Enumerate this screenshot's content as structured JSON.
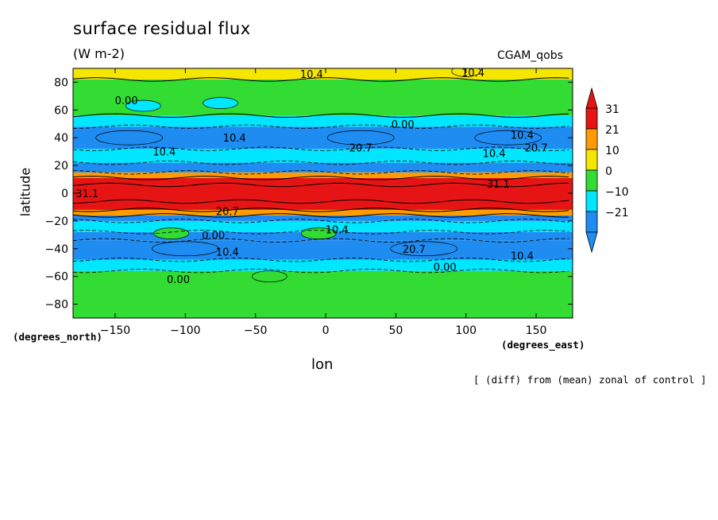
{
  "title": "surface residual flux",
  "units": "(W m-2)",
  "model": "CGAM_qobs",
  "note": "[ (diff) from (mean) zonal of control ]",
  "colors": {
    "band_neg21": "#1e8cf0",
    "band_neg10": "#00e6ff",
    "band_0": "#32dc32",
    "band_10": "#f5e600",
    "band_21": "#ff9b00",
    "band_31": "#e61414"
  },
  "chart_data": {
    "type": "heatmap",
    "title": "surface residual flux",
    "xlabel": "lon",
    "ylabel": "latitude",
    "x_units": "(degrees_east)",
    "y_units": "(degrees_north)",
    "xlim": [
      -180,
      176
    ],
    "ylim": [
      -90,
      90
    ],
    "xticks": [
      -150,
      -100,
      -50,
      0,
      50,
      100,
      150
    ],
    "yticks": [
      -80,
      -60,
      -40,
      -20,
      0,
      20,
      40,
      60,
      80
    ],
    "colorbar": {
      "levels": [
        -21,
        -10,
        0,
        10,
        21,
        31
      ],
      "labels": [
        "31",
        "21",
        "10",
        "0",
        "−10",
        "−21"
      ],
      "extends": "both"
    },
    "zonal_bands": [
      {
        "lat": [
          -90,
          -56
        ],
        "value": 5
      },
      {
        "lat": [
          -56,
          -48
        ],
        "value": -5
      },
      {
        "lat": [
          -48,
          -34
        ],
        "value": -15
      },
      {
        "lat": [
          -34,
          -28
        ],
        "value": -12
      },
      {
        "lat": [
          -28,
          -20
        ],
        "value": -8
      },
      {
        "lat": [
          -20,
          -16
        ],
        "value": -14
      },
      {
        "lat": [
          -16,
          -12
        ],
        "value": 15
      },
      {
        "lat": [
          -12,
          -6
        ],
        "value": 25
      },
      {
        "lat": [
          -6,
          6
        ],
        "value": 35
      },
      {
        "lat": [
          6,
          11
        ],
        "value": 25
      },
      {
        "lat": [
          11,
          15
        ],
        "value": 14
      },
      {
        "lat": [
          15,
          22
        ],
        "value": -14
      },
      {
        "lat": [
          22,
          32
        ],
        "value": -8
      },
      {
        "lat": [
          32,
          48
        ],
        "value": -14
      },
      {
        "lat": [
          48,
          56
        ],
        "value": -5
      },
      {
        "lat": [
          56,
          82
        ],
        "value": 4
      },
      {
        "lat": [
          82,
          90
        ],
        "value": 12
      }
    ],
    "features": [
      {
        "lon": -130,
        "lat": 63,
        "value": -5
      },
      {
        "lon": -75,
        "lat": 65,
        "value": -5
      },
      {
        "lon": -110,
        "lat": -29,
        "value": 3
      },
      {
        "lon": -5,
        "lat": -29,
        "value": 3
      },
      {
        "lon": -40,
        "lat": -60,
        "value": 5
      },
      {
        "lon": -140,
        "lat": 40,
        "value": -15
      },
      {
        "lon": 25,
        "lat": 40,
        "value": -15
      },
      {
        "lon": 130,
        "lat": 40,
        "value": -15
      },
      {
        "lon": -100,
        "lat": -40,
        "value": -15
      },
      {
        "lon": 70,
        "lat": -40,
        "value": -15
      },
      {
        "lon": 100,
        "lat": 88,
        "value": 12
      }
    ],
    "contour_labels": [
      {
        "text": "10.4",
        "lon": -10,
        "lat": 86
      },
      {
        "text": "10.4",
        "lon": 105,
        "lat": 87
      },
      {
        "text": "0.00",
        "lon": -142,
        "lat": 67
      },
      {
        "text": "0.00",
        "lon": 55,
        "lat": 50
      },
      {
        "text": "10.4",
        "lon": -65,
        "lat": 40
      },
      {
        "text": "10.4",
        "lon": 140,
        "lat": 42
      },
      {
        "text": "10.4",
        "lon": -115,
        "lat": 30
      },
      {
        "text": "20.7",
        "lon": 25,
        "lat": 33
      },
      {
        "text": "10.4",
        "lon": 120,
        "lat": 29
      },
      {
        "text": "20.7",
        "lon": 150,
        "lat": 33
      },
      {
        "text": "31.1",
        "lon": -170,
        "lat": 0
      },
      {
        "text": "31.1",
        "lon": 123,
        "lat": 7
      },
      {
        "text": "20.7",
        "lon": -70,
        "lat": -13
      },
      {
        "text": "0.00",
        "lon": -80,
        "lat": -30
      },
      {
        "text": "10.4",
        "lon": 8,
        "lat": -26
      },
      {
        "text": "20.7",
        "lon": 63,
        "lat": -40
      },
      {
        "text": "10.4",
        "lon": -70,
        "lat": -42
      },
      {
        "text": "10.4",
        "lon": 140,
        "lat": -45
      },
      {
        "text": "0.00",
        "lon": 85,
        "lat": -53
      },
      {
        "text": "0.00",
        "lon": -105,
        "lat": -62
      }
    ]
  }
}
